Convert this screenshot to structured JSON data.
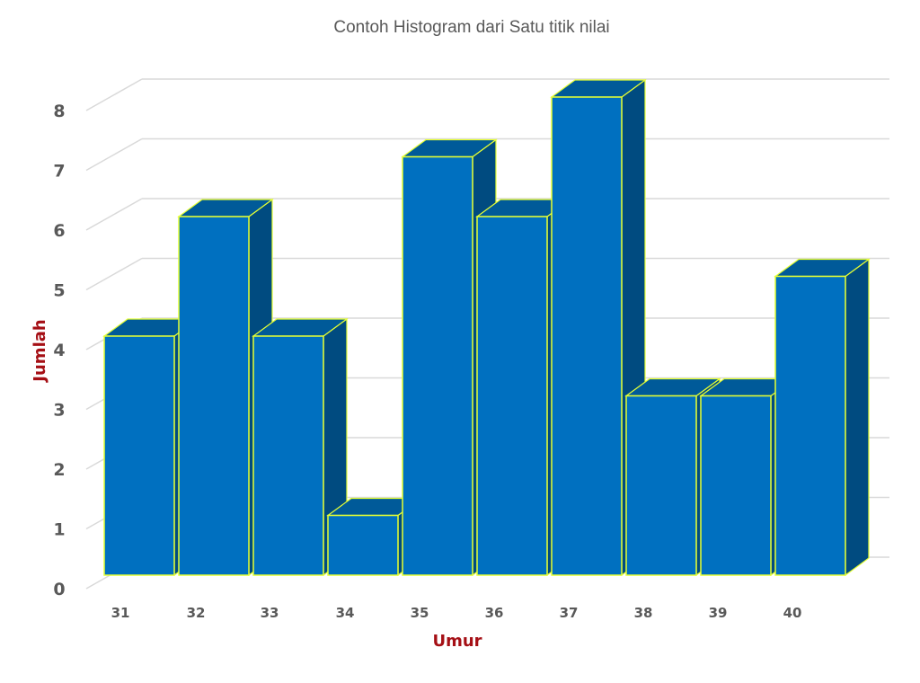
{
  "chart_data": {
    "type": "bar",
    "style": "3d-column",
    "title": "Contoh Histogram dari Satu titik nilai",
    "xlabel": "Umur",
    "ylabel": "Jumlah",
    "categories": [
      "31",
      "32",
      "33",
      "34",
      "35",
      "36",
      "37",
      "38",
      "39",
      "40"
    ],
    "values": [
      4,
      6,
      4,
      1,
      7,
      6,
      8,
      3,
      3,
      5
    ],
    "ylim": [
      0,
      8
    ],
    "yticks": [
      "0",
      "1",
      "2",
      "3",
      "4",
      "5",
      "6",
      "7",
      "8"
    ],
    "grid": true,
    "legend": null,
    "colors": {
      "bar_front": "#0070c0",
      "bar_side": "#004b80",
      "bar_top": "#005a99",
      "bar_outline": "#e6ff33",
      "gridline": "#d9d9d9",
      "tick_label": "#595959",
      "axis_title": "#a50f15",
      "title": "#595959"
    }
  }
}
